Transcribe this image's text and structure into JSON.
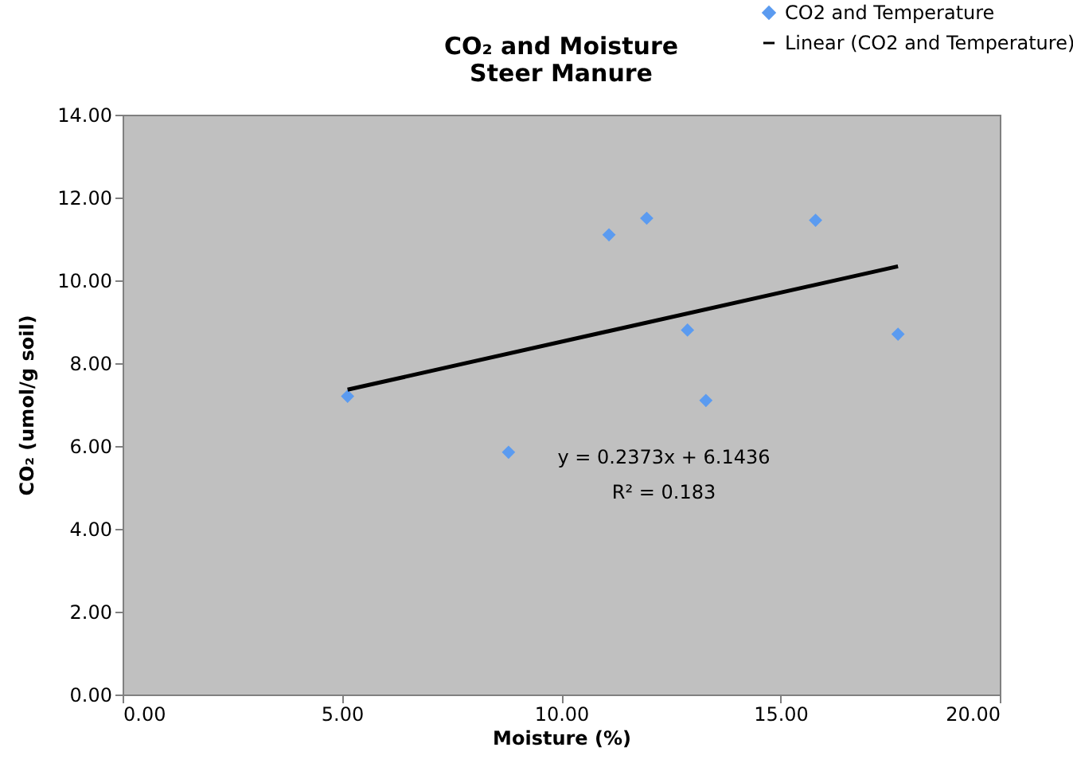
{
  "chart_data": {
    "type": "scatter",
    "title": [
      "CO₂ and Moisture",
      "Steer Manure"
    ],
    "xlabel": "Moisture (%)",
    "ylabel": "CO₂ (umol/g soil)",
    "series": [
      {
        "name": "CO2 and Temperature",
        "type": "scatter",
        "color": "#5b9bf0",
        "marker": "diamond",
        "x": [
          5.13,
          8.8,
          11.09,
          11.95,
          12.88,
          13.3,
          15.8,
          17.68
        ],
        "values": [
          7.2,
          5.85,
          11.1,
          11.5,
          8.8,
          7.1,
          11.45,
          8.7
        ]
      },
      {
        "name": "Linear (CO2 and Temperature)",
        "type": "line",
        "color": "#000000",
        "line_style": "solid",
        "x": [
          5.13,
          17.68
        ],
        "values": [
          7.36,
          10.34
        ]
      }
    ],
    "xlim": [
      0,
      20
    ],
    "ylim": [
      0,
      14
    ],
    "xticks": [
      {
        "value": 0,
        "label": "0.00"
      },
      {
        "value": 5,
        "label": "5.00"
      },
      {
        "value": 10,
        "label": "10.00"
      },
      {
        "value": 15,
        "label": "15.00"
      },
      {
        "value": 20,
        "label": "20.00"
      }
    ],
    "yticks": [
      {
        "value": 0,
        "label": "0.00"
      },
      {
        "value": 2,
        "label": "2.00"
      },
      {
        "value": 4,
        "label": "4.00"
      },
      {
        "value": 6,
        "label": "6.00"
      },
      {
        "value": 8,
        "label": "8.00"
      },
      {
        "value": 10,
        "label": "10.00"
      },
      {
        "value": 12,
        "label": "12.00"
      },
      {
        "value": 14,
        "label": "14.00"
      }
    ],
    "annotations": [
      "y = 0.2373x + 6.1436",
      "R² = 0.183"
    ],
    "grid": false,
    "legend": "top right"
  }
}
